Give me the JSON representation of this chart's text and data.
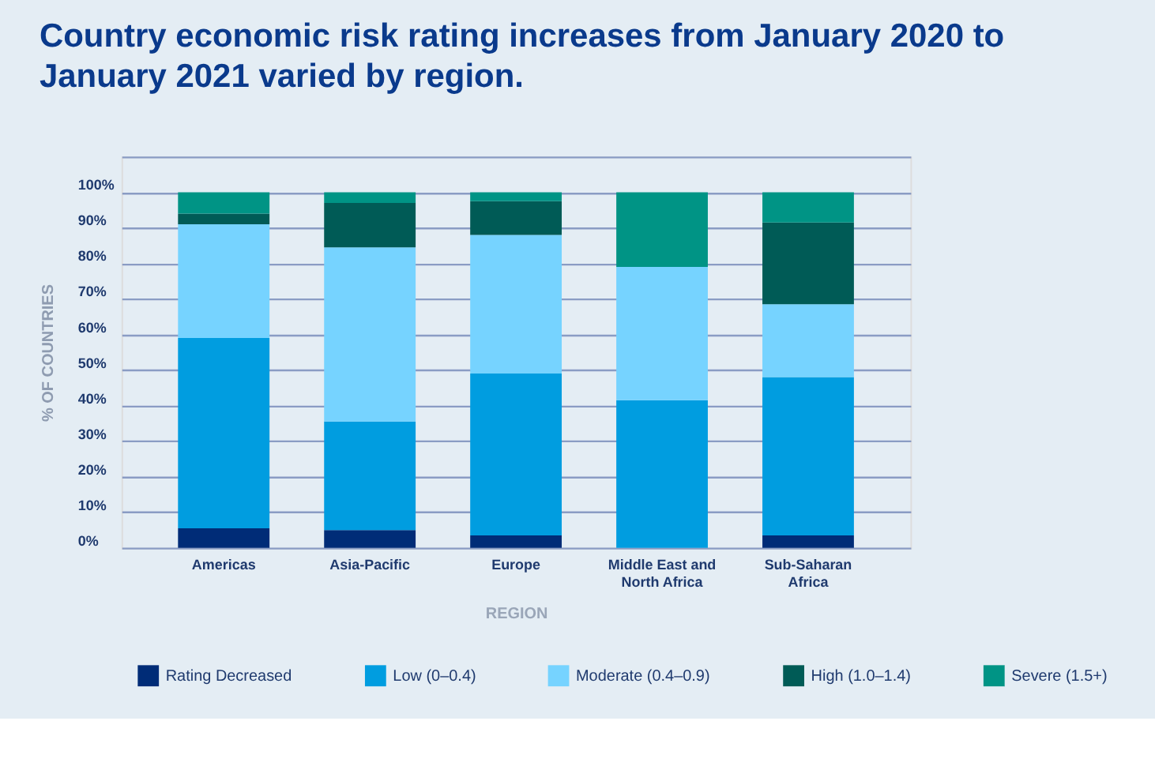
{
  "chart_data": {
    "type": "bar",
    "title": "Country economic risk rating increases from January 2020 to January 2021 varied by region.",
    "xlabel": "REGION",
    "ylabel": "% OF COUNTRIES",
    "categories": [
      "Americas",
      "Asia-Pacific",
      "Europe",
      "Middle East and North Africa",
      "Sub-Saharan Africa"
    ],
    "stacked": true,
    "series": [
      {
        "name": "Rating Decreased",
        "color": "#002c77",
        "values": [
          5.5,
          5,
          3.5,
          0,
          3.5
        ]
      },
      {
        "name": "Low (0–0.4)",
        "color": "#009de0",
        "values": [
          53.5,
          30.5,
          45.5,
          41.5,
          44.5
        ]
      },
      {
        "name": "Moderate (0.4–0.9)",
        "color": "#76d3ff",
        "values": [
          32,
          49,
          39,
          37.5,
          20.5
        ]
      },
      {
        "name": "High (1.0–1.4)",
        "color": "#005b56",
        "values": [
          3,
          12.5,
          9.5,
          0,
          23
        ]
      },
      {
        "name": "Severe (1.5+)",
        "color": "#009485",
        "values": [
          6,
          3,
          2.5,
          21,
          8.5
        ]
      }
    ],
    "ylim": [
      0,
      110
    ],
    "yticks": [
      {
        "value": 0,
        "label": "0%"
      },
      {
        "value": 10,
        "label": "10%"
      },
      {
        "value": 20,
        "label": "20%"
      },
      {
        "value": 30,
        "label": "30%"
      },
      {
        "value": 40,
        "label": "40%"
      },
      {
        "value": 50,
        "label": "50%"
      },
      {
        "value": 60,
        "label": "60%"
      },
      {
        "value": 70,
        "label": "70%"
      },
      {
        "value": 80,
        "label": "80%"
      },
      {
        "value": 90,
        "label": "90%"
      },
      {
        "value": 100,
        "label": "100%"
      },
      {
        "value": 110,
        "label": null
      }
    ],
    "grid": "y",
    "legend": "bottom"
  }
}
